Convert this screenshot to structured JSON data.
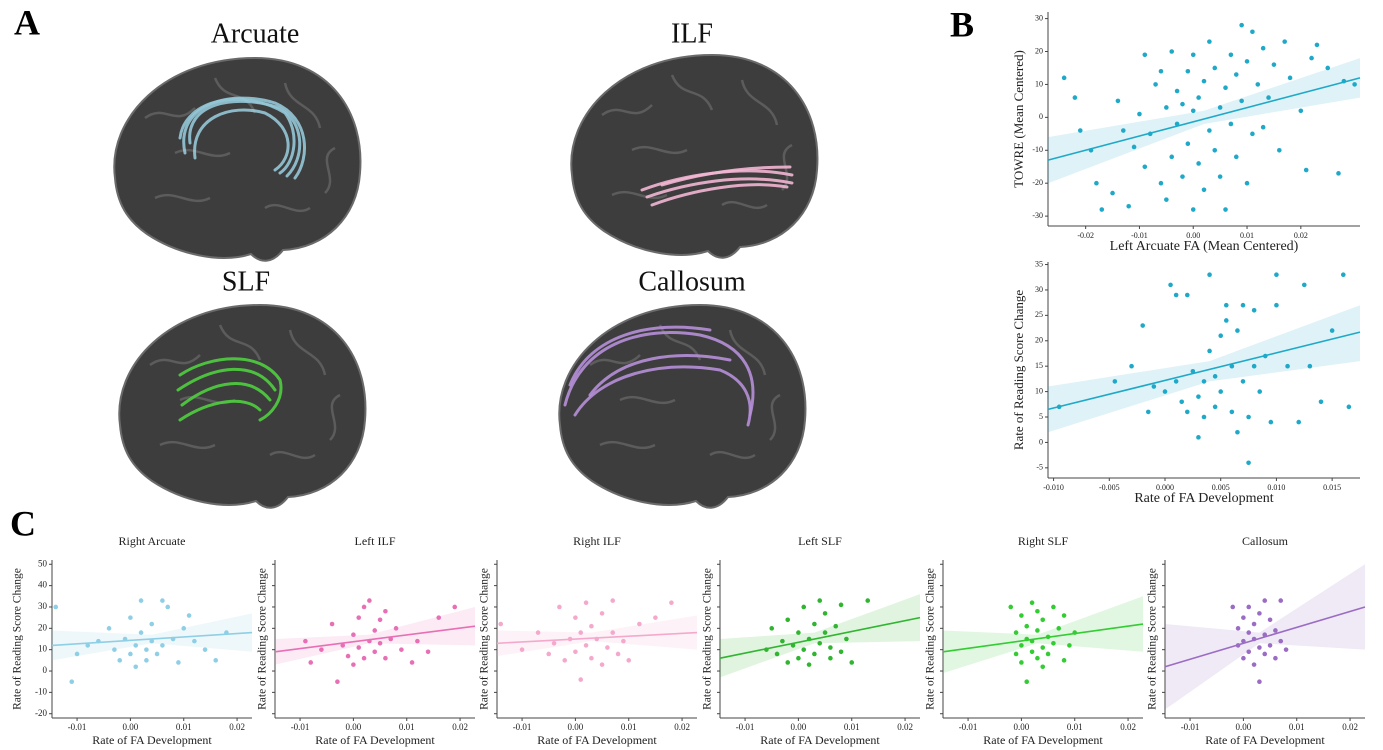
{
  "figure": {
    "panels": [
      "A",
      "B",
      "C"
    ],
    "tracts": [
      "Arcuate",
      "ILF",
      "SLF",
      "Callosum"
    ]
  },
  "chart_data": [
    {
      "type": "scatter",
      "x_label": "Left Arcuate FA (Mean Centered)",
      "y_label": "TOWRE (Mean Centered)",
      "color": "#1fa9c9",
      "x": [
        -0.024,
        -0.022,
        -0.021,
        -0.019,
        -0.018,
        -0.017,
        -0.015,
        -0.014,
        -0.013,
        -0.012,
        -0.011,
        -0.01,
        -0.009,
        -0.009,
        -0.008,
        -0.007,
        -0.006,
        -0.006,
        -0.005,
        -0.005,
        -0.004,
        -0.004,
        -0.003,
        -0.003,
        -0.002,
        -0.002,
        -0.001,
        -0.001,
        0.0,
        0.0,
        0.0,
        0.001,
        0.001,
        0.002,
        0.002,
        0.003,
        0.003,
        0.004,
        0.004,
        0.005,
        0.005,
        0.006,
        0.006,
        0.007,
        0.007,
        0.008,
        0.008,
        0.009,
        0.009,
        0.01,
        0.01,
        0.011,
        0.011,
        0.012,
        0.013,
        0.013,
        0.014,
        0.015,
        0.016,
        0.017,
        0.018,
        0.02,
        0.021,
        0.022,
        0.023,
        0.025,
        0.027,
        0.028,
        0.03
      ],
      "y": [
        12,
        6,
        -4,
        -10,
        -20,
        -28,
        -23,
        5,
        -4,
        -27,
        -9,
        1,
        19,
        -15,
        -5,
        10,
        -20,
        14,
        3,
        -25,
        -12,
        20,
        -2,
        8,
        -18,
        4,
        -8,
        14,
        -28,
        2,
        19,
        -14,
        6,
        -22,
        11,
        -4,
        23,
        -10,
        15,
        -18,
        3,
        9,
        -28,
        19,
        -2,
        13,
        -12,
        28,
        5,
        -20,
        17,
        26,
        -5,
        10,
        21,
        -3,
        6,
        16,
        -10,
        23,
        12,
        2,
        -16,
        18,
        22,
        15,
        -17,
        11,
        10
      ],
      "fit": {
        "x": [
          -0.027,
          0.031
        ],
        "y": [
          -13,
          12
        ]
      },
      "ci": {
        "x": [
          -0.027,
          0.002,
          0.031
        ],
        "lower": [
          -20,
          -2,
          6
        ],
        "upper": [
          -6,
          2,
          18
        ]
      },
      "xlim": [
        -0.027,
        0.031
      ],
      "ylim": [
        -33,
        32
      ],
      "xticks": [
        -0.02,
        -0.01,
        {
          "value": 0,
          "label": "0.00"
        },
        0.01,
        0.02
      ],
      "yticks": [
        -30,
        -20,
        -10,
        0,
        10,
        20,
        30
      ],
      "ytick_labels": true,
      "grid": false
    },
    {
      "type": "scatter",
      "x_label": "Rate of FA Development",
      "y_label": "Rate of Reading Score Change",
      "color": "#1fa9c9",
      "x": [
        -0.0095,
        -0.0045,
        -0.003,
        -0.002,
        -0.0015,
        -0.001,
        0.0,
        0.0005,
        0.001,
        0.001,
        0.0015,
        0.002,
        0.002,
        0.0025,
        0.003,
        0.003,
        0.0035,
        0.0035,
        0.004,
        0.004,
        0.0045,
        0.0045,
        0.005,
        0.005,
        0.0055,
        0.0055,
        0.006,
        0.006,
        0.0065,
        0.0065,
        0.007,
        0.007,
        0.0075,
        0.0075,
        0.008,
        0.008,
        0.0085,
        0.009,
        0.0095,
        0.01,
        0.01,
        0.011,
        0.012,
        0.0125,
        0.013,
        0.014,
        0.015,
        0.016,
        0.0165
      ],
      "y": [
        7,
        12,
        15,
        23,
        6,
        11,
        10,
        31,
        29,
        12,
        8,
        6,
        29,
        14,
        1,
        9,
        5,
        12,
        18,
        33,
        7,
        13,
        21,
        10,
        27,
        24,
        6,
        15,
        2,
        22,
        27,
        12,
        -4,
        5,
        26,
        15,
        10,
        17,
        4,
        27,
        33,
        15,
        4,
        31,
        15,
        8,
        22,
        33,
        7
      ],
      "fit": {
        "x": [
          -0.0105,
          0.0175
        ],
        "y": [
          6.5,
          21.7
        ]
      },
      "ci": {
        "x": [
          -0.0105,
          0.004,
          0.0175
        ],
        "lower": [
          2,
          12,
          16
        ],
        "upper": [
          11,
          16,
          27
        ]
      },
      "xlim": [
        -0.0105,
        0.0175
      ],
      "ylim": [
        -7,
        35.5
      ],
      "xticks": [
        {
          "value": -0.01,
          "label": "-0.010"
        },
        -0.005,
        {
          "value": 0,
          "label": "0.000"
        },
        0.005,
        {
          "value": 0.01,
          "label": "0.010"
        },
        0.015
      ],
      "yticks": [
        -5,
        0,
        5,
        10,
        15,
        20,
        25,
        30,
        35
      ],
      "ytick_labels": true,
      "grid": false
    },
    {
      "type": "scatter",
      "title": "Right Arcuate",
      "x_label": "Rate of FA Development",
      "y_label": "Rate of Reading Score Change",
      "color": "#8ecfe6",
      "x": [
        -0.014,
        -0.011,
        -0.01,
        -0.008,
        -0.006,
        -0.004,
        -0.003,
        -0.002,
        -0.001,
        0.0,
        0.0,
        0.001,
        0.001,
        0.002,
        0.002,
        0.003,
        0.003,
        0.004,
        0.004,
        0.005,
        0.006,
        0.006,
        0.007,
        0.008,
        0.009,
        0.01,
        0.011,
        0.012,
        0.014,
        0.016,
        0.018
      ],
      "y": [
        30,
        -5,
        8,
        12,
        14,
        20,
        10,
        5,
        15,
        8,
        25,
        2,
        12,
        33,
        18,
        10,
        5,
        22,
        14,
        8,
        33,
        12,
        30,
        15,
        4,
        20,
        26,
        14,
        10,
        5,
        18
      ],
      "fit": {
        "x": [
          -0.0147,
          0.0228
        ],
        "y": [
          12,
          18
        ]
      },
      "ci": {
        "x": [
          -0.0147,
          0.004,
          0.0228
        ],
        "lower": [
          5,
          13,
          9
        ],
        "upper": [
          19,
          17,
          27
        ]
      },
      "xlim": [
        -0.0147,
        0.0228
      ],
      "ylim": [
        -22,
        52
      ],
      "xticks": [
        -0.01,
        {
          "value": 0,
          "label": "0.00"
        },
        0.01,
        0.02
      ],
      "yticks": [
        -20,
        -10,
        0,
        10,
        20,
        30,
        40,
        50
      ],
      "ytick_labels": true,
      "grid": false
    },
    {
      "type": "scatter",
      "title": "Left ILF",
      "x_label": "Rate of FA Development",
      "y_label": "Rate of Reading Score Change",
      "color": "#e86fb5",
      "x": [
        -0.009,
        -0.008,
        -0.006,
        -0.004,
        -0.003,
        -0.002,
        -0.001,
        0.0,
        0.0,
        0.001,
        0.001,
        0.002,
        0.002,
        0.003,
        0.003,
        0.004,
        0.004,
        0.005,
        0.005,
        0.006,
        0.006,
        0.007,
        0.008,
        0.009,
        0.011,
        0.012,
        0.014,
        0.016,
        0.019
      ],
      "y": [
        14,
        4,
        10,
        22,
        -5,
        12,
        7,
        17,
        3,
        25,
        11,
        30,
        6,
        14,
        33,
        19,
        9,
        24,
        13,
        6,
        28,
        15,
        20,
        10,
        4,
        14,
        9,
        25,
        30
      ],
      "fit": {
        "x": [
          -0.0147,
          0.0228
        ],
        "y": [
          9,
          21
        ]
      },
      "ci": {
        "x": [
          -0.0147,
          0.003,
          0.0228
        ],
        "lower": [
          3,
          13,
          12
        ],
        "upper": [
          15,
          17,
          30
        ]
      },
      "xlim": [
        -0.0147,
        0.0228
      ],
      "ylim": [
        -22,
        52
      ],
      "xticks": [
        -0.01,
        {
          "value": 0,
          "label": "0.00"
        },
        0.01,
        0.02
      ],
      "yticks": [
        -20,
        -10,
        0,
        10,
        20,
        30,
        40,
        50
      ],
      "ytick_labels": false,
      "grid": false
    },
    {
      "type": "scatter",
      "title": "Right ILF",
      "x_label": "Rate of FA Development",
      "y_label": "Rate of Reading Score Change",
      "color": "#f4a9cc",
      "x": [
        -0.014,
        -0.01,
        -0.007,
        -0.005,
        -0.004,
        -0.003,
        -0.002,
        -0.001,
        0.0,
        0.0,
        0.001,
        0.001,
        0.002,
        0.002,
        0.003,
        0.003,
        0.004,
        0.005,
        0.005,
        0.006,
        0.007,
        0.007,
        0.008,
        0.009,
        0.01,
        0.012,
        0.015,
        0.018
      ],
      "y": [
        22,
        10,
        18,
        8,
        13,
        30,
        5,
        15,
        25,
        9,
        -4,
        18,
        32,
        12,
        6,
        21,
        15,
        27,
        3,
        11,
        33,
        18,
        8,
        14,
        5,
        22,
        25,
        32
      ],
      "fit": {
        "x": [
          -0.0147,
          0.0228
        ],
        "y": [
          13,
          18
        ]
      },
      "ci": {
        "x": [
          -0.0147,
          0.003,
          0.0228
        ],
        "lower": [
          7,
          14,
          10
        ],
        "upper": [
          19,
          18,
          26
        ]
      },
      "xlim": [
        -0.0147,
        0.0228
      ],
      "ylim": [
        -22,
        52
      ],
      "xticks": [
        -0.01,
        {
          "value": 0,
          "label": "0.00"
        },
        0.01,
        0.02
      ],
      "yticks": [
        -20,
        -10,
        0,
        10,
        20,
        30,
        40,
        50
      ],
      "ytick_labels": false,
      "grid": false
    },
    {
      "type": "scatter",
      "title": "Left SLF",
      "x_label": "Rate of FA Development",
      "y_label": "Rate of Reading Score Change",
      "color": "#2fb52f",
      "x": [
        -0.006,
        -0.005,
        -0.004,
        -0.003,
        -0.002,
        -0.002,
        -0.001,
        0.0,
        0.0,
        0.001,
        0.001,
        0.002,
        0.002,
        0.003,
        0.003,
        0.004,
        0.004,
        0.005,
        0.005,
        0.006,
        0.006,
        0.007,
        0.008,
        0.008,
        0.009,
        0.01,
        0.013
      ],
      "y": [
        10,
        20,
        8,
        14,
        4,
        24,
        12,
        6,
        18,
        30,
        10,
        15,
        3,
        22,
        8,
        33,
        13,
        18,
        27,
        6,
        11,
        21,
        31,
        9,
        15,
        4,
        33
      ],
      "fit": {
        "x": [
          -0.0147,
          0.0228
        ],
        "y": [
          6,
          25
        ]
      },
      "ci": {
        "x": [
          -0.0147,
          0.003,
          0.0228
        ],
        "lower": [
          -3,
          13,
          14
        ],
        "upper": [
          15,
          18,
          36
        ]
      },
      "xlim": [
        -0.0147,
        0.0228
      ],
      "ylim": [
        -22,
        52
      ],
      "xticks": [
        -0.01,
        {
          "value": 0,
          "label": "0.00"
        },
        0.01,
        0.02
      ],
      "yticks": [
        -20,
        -10,
        0,
        10,
        20,
        30,
        40,
        50
      ],
      "ytick_labels": false,
      "grid": false
    },
    {
      "type": "scatter",
      "title": "Right SLF",
      "x_label": "Rate of FA Development",
      "y_label": "Rate of Reading Score Change",
      "color": "#33cc33",
      "x": [
        -0.002,
        -0.001,
        -0.001,
        0.0,
        0.0,
        0.0,
        0.001,
        0.001,
        0.001,
        0.002,
        0.002,
        0.002,
        0.003,
        0.003,
        0.003,
        0.004,
        0.004,
        0.004,
        0.005,
        0.005,
        0.006,
        0.006,
        0.007,
        0.008,
        0.008,
        0.009,
        0.01
      ],
      "y": [
        30,
        8,
        18,
        4,
        12,
        26,
        15,
        -5,
        21,
        9,
        32,
        14,
        6,
        19,
        28,
        11,
        2,
        24,
        16,
        8,
        30,
        13,
        20,
        5,
        26,
        12,
        18
      ],
      "fit": {
        "x": [
          -0.0147,
          0.0228
        ],
        "y": [
          9,
          22
        ]
      },
      "ci": {
        "x": [
          -0.0147,
          0.003,
          0.0228
        ],
        "lower": [
          -1,
          13,
          9
        ],
        "upper": [
          19,
          17,
          35
        ]
      },
      "xlim": [
        -0.0147,
        0.0228
      ],
      "ylim": [
        -22,
        52
      ],
      "xticks": [
        -0.01,
        {
          "value": 0,
          "label": "0.00"
        },
        0.01,
        0.02
      ],
      "yticks": [
        -20,
        -10,
        0,
        10,
        20,
        30,
        40,
        50
      ],
      "ytick_labels": false,
      "grid": false
    },
    {
      "type": "scatter",
      "title": "Callosum",
      "x_label": "Rate of FA Development",
      "y_label": "Rate of Reading Score Change",
      "color": "#9b6cc4",
      "x": [
        -0.002,
        -0.001,
        -0.001,
        0.0,
        0.0,
        0.0,
        0.001,
        0.001,
        0.001,
        0.002,
        0.002,
        0.002,
        0.003,
        0.003,
        0.003,
        0.004,
        0.004,
        0.004,
        0.005,
        0.005,
        0.006,
        0.006,
        0.007,
        0.007,
        0.008
      ],
      "y": [
        30,
        12,
        20,
        6,
        14,
        25,
        9,
        18,
        30,
        3,
        15,
        22,
        -5,
        11,
        27,
        8,
        17,
        33,
        12,
        24,
        6,
        19,
        33,
        14,
        10
      ],
      "fit": {
        "x": [
          -0.0147,
          0.0228
        ],
        "y": [
          2,
          30
        ]
      },
      "ci": {
        "x": [
          -0.0147,
          0.003,
          0.0228
        ],
        "lower": [
          -18,
          13,
          10
        ],
        "upper": [
          22,
          18,
          50
        ]
      },
      "xlim": [
        -0.0147,
        0.0228
      ],
      "ylim": [
        -22,
        52
      ],
      "xticks": [
        -0.01,
        {
          "value": 0,
          "label": "0.00"
        },
        0.01,
        0.02
      ],
      "yticks": [
        -20,
        -10,
        0,
        10,
        20,
        30,
        40,
        50
      ],
      "ytick_labels": false,
      "grid": false
    }
  ]
}
